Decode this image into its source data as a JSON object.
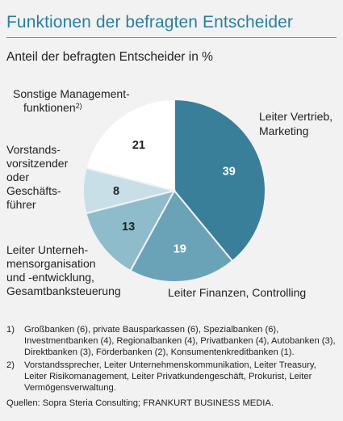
{
  "title": "Funktionen der befragten Entscheider",
  "subtitle": "Anteil der befragten Entscheider in %",
  "chart_data": {
    "type": "pie",
    "unit": "%",
    "slices": [
      {
        "label": "Leiter Vertrieb, Marketing",
        "value": 39,
        "color": "#3a7f99",
        "value_color": "#ffffff"
      },
      {
        "label": "Leiter Finanzen, Controlling",
        "value": 19,
        "color": "#6aa3b7",
        "value_color": "#ffffff"
      },
      {
        "label": "Leiter Unternehmensorganisation und -entwicklung, Gesamtbanksteuerung",
        "value": 13,
        "color": "#8fbccb",
        "value_color": "#222222"
      },
      {
        "label": "Vorstandsvorsitzender oder Geschäftsführer",
        "value": 8,
        "color": "#c8dfe8",
        "value_color": "#222222"
      },
      {
        "label": "Sonstige Managementfunktionen",
        "value": 21,
        "color": "#ffffff",
        "value_color": "#222222"
      }
    ]
  },
  "labels": {
    "vertrieb_1": "Leiter Vertrieb,",
    "vertrieb_2": "Marketing",
    "finanzen": "Leiter Finanzen, Controlling",
    "org_1": "Leiter Unterneh-",
    "org_2": "mensorganisation",
    "org_3": "und -entwicklung,",
    "org_4": "Gesamtbanksteuerung",
    "vorstand_1": "Vorstands-",
    "vorstand_2": "vorsitzender",
    "vorstand_3": "oder",
    "vorstand_4": "Geschäfts-",
    "vorstand_5": "führer",
    "sonstige_1": "Sonstige Management-",
    "sonstige_2": "funktionen",
    "sonstige_sup": "2)"
  },
  "footnotes": [
    {
      "num": "1)",
      "text": "Großbanken (6), private Bausparkassen (6), Spezialbanken (6), Investmentbanken (4), Regionalbanken (4), Privatbanken (4), Autobanken (3), Direktbanken (3), Förderbanken (2), Konsumentenkreditbanken (1)."
    },
    {
      "num": "2)",
      "text": "Vorstandssprecher, Leiter Unternehmenskommunikation, Leiter Treasury, Leiter Risikomanagement, Leiter Privatkundengeschäft, Prokurist, Leiter Vermögensverwaltung."
    }
  ],
  "source": "Quellen: Sopra Steria Consulting; FRANKURT BUSINESS MEDIA."
}
